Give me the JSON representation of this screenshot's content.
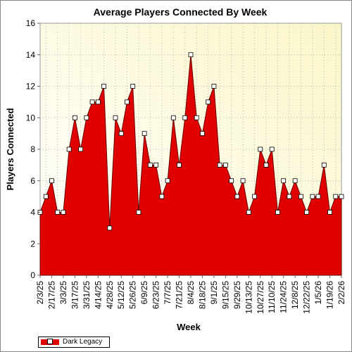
{
  "chart_data": {
    "type": "area",
    "title": "Average Players Connected By Week",
    "xlabel": "Week",
    "ylabel": "Players Connected",
    "ylim": [
      0,
      16
    ],
    "yticks": [
      0,
      2,
      4,
      6,
      8,
      10,
      12,
      14,
      16
    ],
    "grid": true,
    "legend_position": "bottom-left",
    "x_tick_labels": [
      "2/3/25",
      "2/17/25",
      "3/3/25",
      "3/17/25",
      "3/31/25",
      "4/14/25",
      "4/28/25",
      "5/12/25",
      "5/26/25",
      "6/9/25",
      "6/23/25",
      "7/7/25",
      "7/21/25",
      "8/4/25",
      "8/18/25",
      "9/1/25",
      "9/15/25",
      "9/29/25",
      "10/13/25",
      "10/27/25",
      "11/10/25",
      "11/24/25",
      "12/8/25",
      "12/22/25",
      "1/5/26",
      "1/19/26",
      "2/2/26"
    ],
    "series": [
      {
        "name": "Dark Legacy",
        "color": "#e00000",
        "values": [
          4,
          5,
          6,
          4,
          4,
          8,
          10,
          8,
          10,
          11,
          11,
          12,
          3,
          10,
          9,
          11,
          12,
          4,
          9,
          7,
          7,
          5,
          6,
          10,
          7,
          10,
          14,
          10,
          9,
          11,
          12,
          7,
          7,
          6,
          5,
          6,
          4,
          5,
          8,
          7,
          8,
          4,
          6,
          5,
          6,
          5,
          4,
          5,
          5,
          7,
          4,
          5,
          5
        ]
      }
    ]
  }
}
